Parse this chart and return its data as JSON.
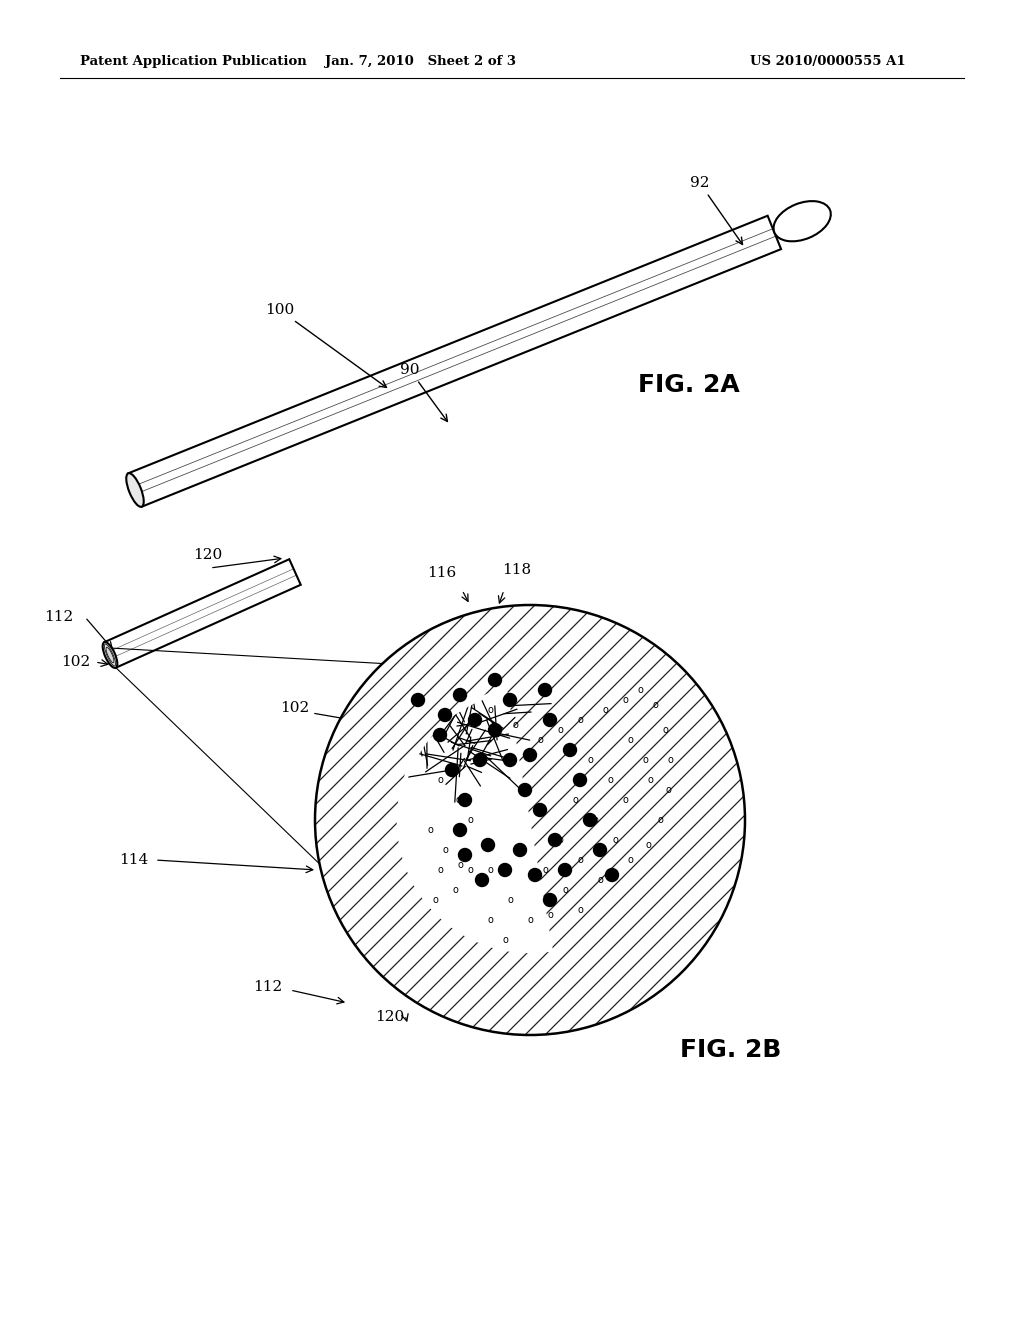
{
  "bg_color": "#ffffff",
  "header_left": "Patent Application Publication",
  "header_mid": "Jan. 7, 2010   Sheet 2 of 3",
  "header_right": "US 2010/0000555 A1",
  "fig2a_label": "FIG. 2A",
  "fig2b_label": "FIG. 2B"
}
